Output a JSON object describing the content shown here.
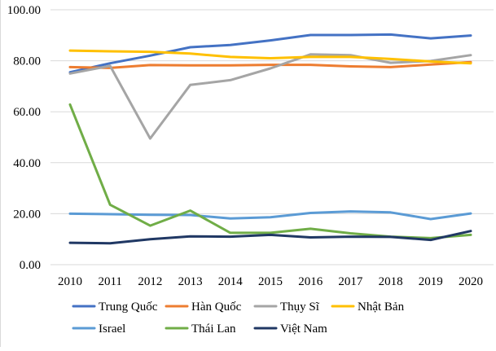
{
  "chart_data": {
    "type": "line",
    "title": "",
    "xlabel": "",
    "ylabel": "",
    "x": [
      "2010",
      "2011",
      "2012",
      "2013",
      "2014",
      "2015",
      "2016",
      "2017",
      "2018",
      "2019",
      "2020"
    ],
    "y_ticks": [
      "0.00",
      "20.00",
      "40.00",
      "60.00",
      "80.00",
      "100.00"
    ],
    "ylim": [
      0,
      100
    ],
    "grid": "horizontal",
    "legend_position": "bottom",
    "series": [
      {
        "name": "Trung Quốc",
        "color": "#4472C4",
        "values": [
          75.5,
          79.0,
          82.0,
          85.3,
          86.2,
          88.0,
          90.1,
          90.1,
          90.3,
          88.8,
          89.9
        ]
      },
      {
        "name": "Hàn Quốc",
        "color": "#ED7D31",
        "values": [
          77.5,
          77.2,
          78.3,
          78.2,
          78.2,
          78.4,
          78.4,
          77.8,
          77.5,
          78.5,
          79.5
        ]
      },
      {
        "name": "Thụy Sĩ",
        "color": "#A5A5A5",
        "values": [
          75.0,
          78.0,
          49.5,
          70.5,
          72.4,
          77.0,
          82.5,
          82.2,
          79.2,
          79.9,
          82.2
        ]
      },
      {
        "name": "Nhật Bản",
        "color": "#FFC000",
        "values": [
          84.0,
          83.7,
          83.5,
          82.8,
          81.5,
          81.0,
          81.5,
          81.5,
          80.7,
          79.7,
          79.0
        ]
      },
      {
        "name": "Israel",
        "color": "#5B9BD5",
        "values": [
          20.0,
          19.8,
          19.6,
          19.5,
          18.1,
          18.6,
          20.3,
          20.9,
          20.5,
          17.9,
          20.1
        ]
      },
      {
        "name": "Thái Lan",
        "color": "#70AD47",
        "values": [
          62.8,
          23.5,
          15.3,
          21.2,
          12.5,
          12.5,
          14.1,
          12.3,
          11.0,
          10.4,
          11.7
        ]
      },
      {
        "name": "Việt Nam",
        "color": "#203864",
        "values": [
          8.6,
          8.4,
          10.0,
          11.1,
          11.0,
          11.7,
          10.7,
          11.0,
          10.9,
          9.7,
          13.2
        ]
      }
    ]
  }
}
